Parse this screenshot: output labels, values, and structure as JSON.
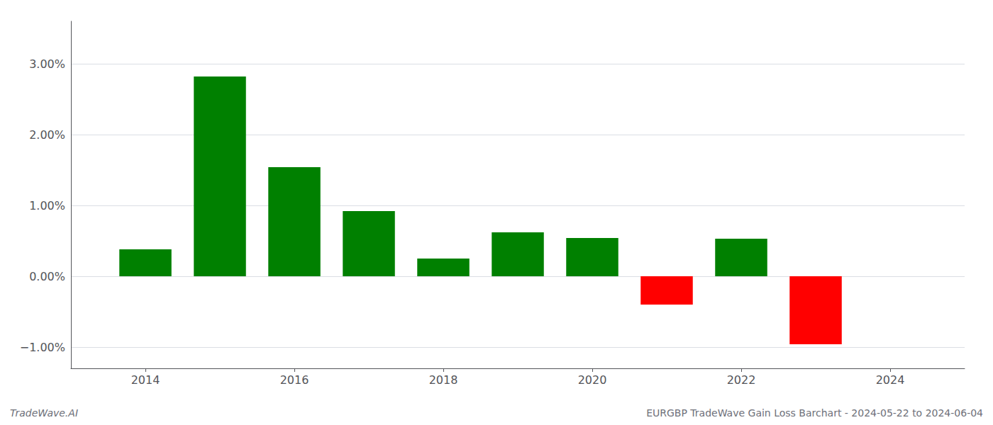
{
  "chart_data": {
    "type": "bar",
    "x": [
      2014,
      2015,
      2016,
      2017,
      2018,
      2019,
      2020,
      2021,
      2022,
      2023
    ],
    "values": [
      0.0038,
      0.0282,
      0.0154,
      0.0092,
      0.0025,
      0.0062,
      0.0054,
      -0.004,
      0.0053,
      -0.0096
    ],
    "colors": [
      "#008000",
      "#008000",
      "#008000",
      "#008000",
      "#008000",
      "#008000",
      "#008000",
      "#ff0000",
      "#008000",
      "#ff0000"
    ],
    "xlim": [
      2013.0,
      2025.0
    ],
    "xticks": [
      2014,
      2016,
      2018,
      2020,
      2022,
      2024
    ],
    "ylim": [
      -0.013,
      0.036
    ],
    "yticks": [
      {
        "value": -0.01,
        "label": "−1.00%"
      },
      {
        "value": 0.0,
        "label": "0.00%"
      },
      {
        "value": 0.01,
        "label": "1.00%"
      },
      {
        "value": 0.02,
        "label": "2.00%"
      },
      {
        "value": 0.03,
        "label": "3.00%"
      }
    ],
    "grid": true,
    "annotations": [
      "TradeWave.AI",
      "EURGBP TradeWave Gain Loss Barchart - 2024-05-22 to 2024-06-04"
    ]
  }
}
